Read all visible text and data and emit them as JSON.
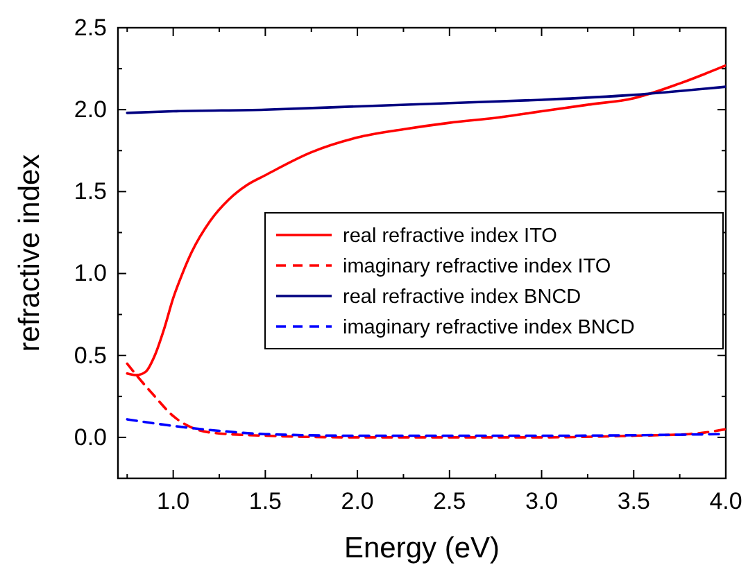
{
  "chart_data": {
    "type": "line",
    "xlabel": "Energy (eV)",
    "ylabel": "refractive index",
    "xlim": [
      0.7,
      4.0
    ],
    "ylim": [
      -0.25,
      2.5
    ],
    "xticks": [
      {
        "value": 0.75,
        "label": null
      },
      {
        "value": 1,
        "label": "1.0"
      },
      {
        "value": 1.25,
        "label": null
      },
      {
        "value": 1.5,
        "label": "1.5"
      },
      {
        "value": 1.75,
        "label": null
      },
      {
        "value": 2,
        "label": "2.0"
      },
      {
        "value": 2.25,
        "label": null
      },
      {
        "value": 2.5,
        "label": "2.5"
      },
      {
        "value": 2.75,
        "label": null
      },
      {
        "value": 3,
        "label": "3.0"
      },
      {
        "value": 3.25,
        "label": null
      },
      {
        "value": 3.5,
        "label": "3.5"
      },
      {
        "value": 3.75,
        "label": null
      },
      {
        "value": 4,
        "label": "4.0"
      }
    ],
    "yticks": [
      {
        "value": -0.25,
        "label": null
      },
      {
        "value": 0,
        "label": "0.0"
      },
      {
        "value": 0.25,
        "label": null
      },
      {
        "value": 0.5,
        "label": "0.5"
      },
      {
        "value": 0.75,
        "label": null
      },
      {
        "value": 1,
        "label": "1.0"
      },
      {
        "value": 1.25,
        "label": null
      },
      {
        "value": 1.5,
        "label": "1.5"
      },
      {
        "value": 1.75,
        "label": null
      },
      {
        "value": 2,
        "label": "2.0"
      },
      {
        "value": 2.25,
        "label": null
      },
      {
        "value": 2.5,
        "label": "2.5"
      }
    ],
    "grid": false,
    "legend": "right",
    "marker": "none",
    "series": [
      {
        "name": "real refractive index ITO",
        "color": "#ff0000",
        "line_style": "solid",
        "x": [
          0.75,
          0.8,
          0.85,
          0.9,
          0.95,
          1.0,
          1.05,
          1.1,
          1.2,
          1.3,
          1.4,
          1.5,
          1.75,
          2.0,
          2.25,
          2.5,
          2.75,
          3.0,
          3.25,
          3.5,
          3.75,
          4.0
        ],
        "values": [
          0.39,
          0.38,
          0.4,
          0.5,
          0.66,
          0.85,
          1.0,
          1.13,
          1.32,
          1.45,
          1.54,
          1.6,
          1.74,
          1.83,
          1.88,
          1.92,
          1.95,
          1.99,
          2.03,
          2.07,
          2.16,
          2.27
        ]
      },
      {
        "name": "imaginary refractive index ITO",
        "color": "#ff0000",
        "line_style": "dashed",
        "x": [
          0.75,
          0.8,
          0.9,
          1.0,
          1.1,
          1.2,
          1.5,
          2.0,
          2.5,
          3.0,
          3.5,
          3.8,
          4.0
        ],
        "values": [
          0.45,
          0.38,
          0.25,
          0.13,
          0.06,
          0.03,
          0.01,
          0.0,
          0.0,
          0.0,
          0.01,
          0.02,
          0.05
        ]
      },
      {
        "name": "real refractive index BNCD",
        "color": "#000080",
        "line_style": "solid",
        "x": [
          0.75,
          1.0,
          1.5,
          2.0,
          2.5,
          3.0,
          3.5,
          4.0
        ],
        "values": [
          1.98,
          1.99,
          2.0,
          2.02,
          2.04,
          2.06,
          2.09,
          2.14
        ]
      },
      {
        "name": "imaginary refractive index BNCD",
        "color": "#0000ff",
        "line_style": "dashed",
        "x": [
          0.75,
          1.0,
          1.25,
          1.5,
          2.0,
          3.0,
          4.0
        ],
        "values": [
          0.11,
          0.07,
          0.04,
          0.02,
          0.01,
          0.01,
          0.02
        ]
      }
    ]
  }
}
